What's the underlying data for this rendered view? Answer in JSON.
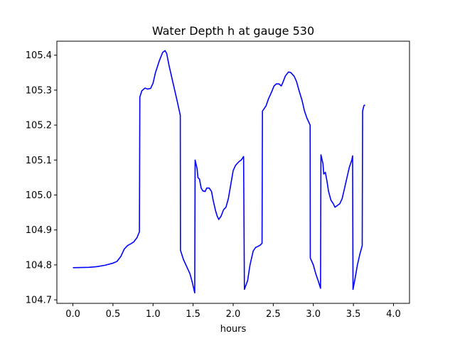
{
  "chart_data": {
    "type": "line",
    "title": "Water Depth h at gauge 530",
    "xlabel": "hours",
    "ylabel": "",
    "xlim": [
      -0.2,
      4.2
    ],
    "ylim": [
      104.69,
      105.44
    ],
    "xticks": [
      0.0,
      0.5,
      1.0,
      1.5,
      2.0,
      2.5,
      3.0,
      3.5,
      4.0
    ],
    "xtick_labels": [
      "0.0",
      "0.5",
      "1.0",
      "1.5",
      "2.0",
      "2.5",
      "3.0",
      "3.5",
      "4.0"
    ],
    "yticks": [
      104.7,
      104.8,
      104.9,
      105.0,
      105.1,
      105.2,
      105.3,
      105.4
    ],
    "ytick_labels": [
      "104.7",
      "104.8",
      "104.9",
      "105.0",
      "105.1",
      "105.2",
      "105.3",
      "105.4"
    ],
    "grid": false,
    "series": [
      {
        "color": "#0000ff",
        "points": [
          [
            0.0,
            104.792
          ],
          [
            0.2,
            104.793
          ],
          [
            0.3,
            104.795
          ],
          [
            0.4,
            104.799
          ],
          [
            0.5,
            104.805
          ],
          [
            0.55,
            104.81
          ],
          [
            0.6,
            104.825
          ],
          [
            0.64,
            104.845
          ],
          [
            0.68,
            104.855
          ],
          [
            0.72,
            104.86
          ],
          [
            0.76,
            104.866
          ],
          [
            0.8,
            104.878
          ],
          [
            0.83,
            104.895
          ],
          [
            0.835,
            105.28
          ],
          [
            0.86,
            105.298
          ],
          [
            0.9,
            105.306
          ],
          [
            0.93,
            105.303
          ],
          [
            0.97,
            105.305
          ],
          [
            1.0,
            105.32
          ],
          [
            1.03,
            105.35
          ],
          [
            1.08,
            105.385
          ],
          [
            1.12,
            105.408
          ],
          [
            1.15,
            105.413
          ],
          [
            1.17,
            105.405
          ],
          [
            1.2,
            105.37
          ],
          [
            1.25,
            105.32
          ],
          [
            1.3,
            105.27
          ],
          [
            1.34,
            105.228
          ],
          [
            1.342,
            104.842
          ],
          [
            1.38,
            104.815
          ],
          [
            1.42,
            104.795
          ],
          [
            1.46,
            104.775
          ],
          [
            1.49,
            104.75
          ],
          [
            1.52,
            104.72
          ],
          [
            1.525,
            105.1
          ],
          [
            1.55,
            105.075
          ],
          [
            1.56,
            105.05
          ],
          [
            1.58,
            105.045
          ],
          [
            1.6,
            105.02
          ],
          [
            1.62,
            105.012
          ],
          [
            1.65,
            105.01
          ],
          [
            1.67,
            105.02
          ],
          [
            1.7,
            105.02
          ],
          [
            1.73,
            105.01
          ],
          [
            1.75,
            104.985
          ],
          [
            1.78,
            104.955
          ],
          [
            1.8,
            104.94
          ],
          [
            1.82,
            104.93
          ],
          [
            1.85,
            104.94
          ],
          [
            1.88,
            104.958
          ],
          [
            1.91,
            104.965
          ],
          [
            1.94,
            104.99
          ],
          [
            1.97,
            105.03
          ],
          [
            2.0,
            105.07
          ],
          [
            2.03,
            105.085
          ],
          [
            2.07,
            105.095
          ],
          [
            2.1,
            105.1
          ],
          [
            2.13,
            105.11
          ],
          [
            2.14,
            104.73
          ],
          [
            2.18,
            104.755
          ],
          [
            2.21,
            104.8
          ],
          [
            2.25,
            104.84
          ],
          [
            2.28,
            104.85
          ],
          [
            2.31,
            104.853
          ],
          [
            2.34,
            104.857
          ],
          [
            2.36,
            104.862
          ],
          [
            2.365,
            105.24
          ],
          [
            2.38,
            105.245
          ],
          [
            2.41,
            105.255
          ],
          [
            2.44,
            105.275
          ],
          [
            2.48,
            105.295
          ],
          [
            2.51,
            105.312
          ],
          [
            2.54,
            105.318
          ],
          [
            2.57,
            105.318
          ],
          [
            2.6,
            105.312
          ],
          [
            2.62,
            105.322
          ],
          [
            2.65,
            105.34
          ],
          [
            2.69,
            105.352
          ],
          [
            2.72,
            105.35
          ],
          [
            2.76,
            105.34
          ],
          [
            2.79,
            105.325
          ],
          [
            2.82,
            105.3
          ],
          [
            2.86,
            105.27
          ],
          [
            2.89,
            105.24
          ],
          [
            2.92,
            105.22
          ],
          [
            2.95,
            105.205
          ],
          [
            2.96,
            105.2
          ],
          [
            2.962,
            104.82
          ],
          [
            3.0,
            104.8
          ],
          [
            3.03,
            104.775
          ],
          [
            3.06,
            104.755
          ],
          [
            3.09,
            104.733
          ],
          [
            3.095,
            105.115
          ],
          [
            3.11,
            105.1
          ],
          [
            3.12,
            105.09
          ],
          [
            3.13,
            105.06
          ],
          [
            3.15,
            105.065
          ],
          [
            3.17,
            105.04
          ],
          [
            3.19,
            105.01
          ],
          [
            3.22,
            104.985
          ],
          [
            3.25,
            104.975
          ],
          [
            3.27,
            104.965
          ],
          [
            3.3,
            104.97
          ],
          [
            3.33,
            104.975
          ],
          [
            3.36,
            104.99
          ],
          [
            3.39,
            105.02
          ],
          [
            3.42,
            105.05
          ],
          [
            3.45,
            105.08
          ],
          [
            3.48,
            105.1
          ],
          [
            3.49,
            105.112
          ],
          [
            3.495,
            104.73
          ],
          [
            3.52,
            104.76
          ],
          [
            3.55,
            104.8
          ],
          [
            3.58,
            104.83
          ],
          [
            3.61,
            104.855
          ],
          [
            3.615,
            105.24
          ],
          [
            3.63,
            105.255
          ],
          [
            3.645,
            105.258
          ]
        ]
      }
    ]
  }
}
